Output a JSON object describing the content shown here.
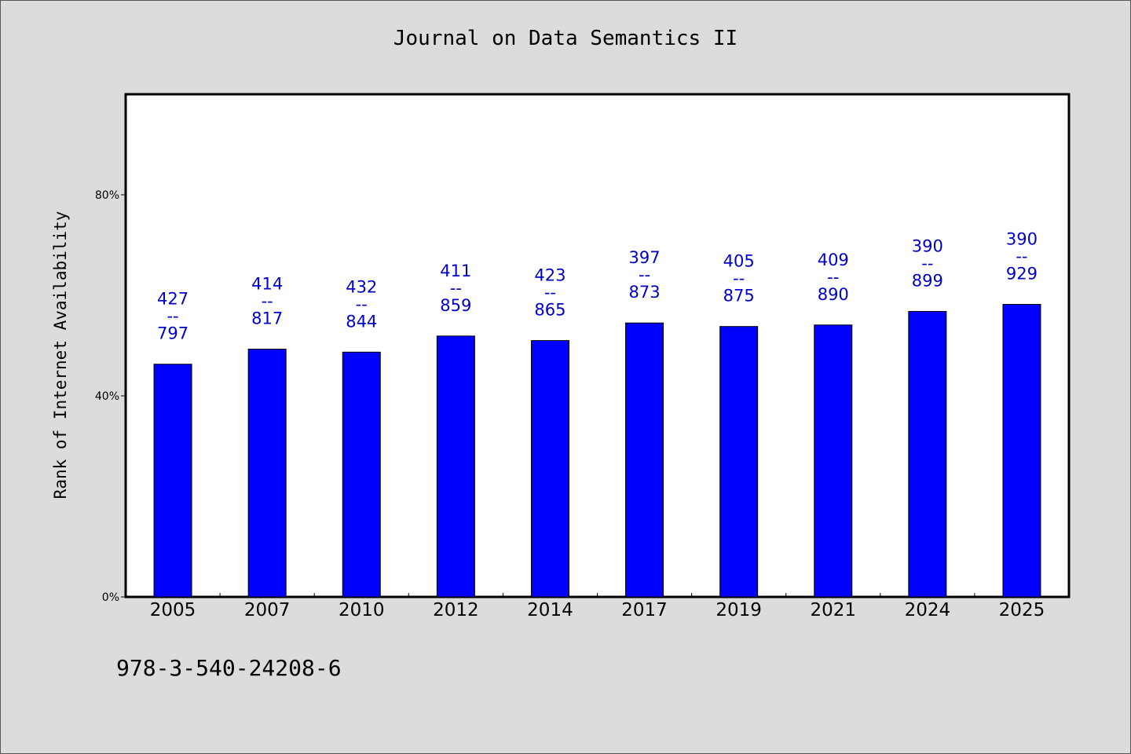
{
  "title": "Journal on Data Semantics II",
  "footnote": "978-3-540-24208-6",
  "chart_data": {
    "type": "bar",
    "title": "Journal on Data Semantics II",
    "xlabel": "",
    "ylabel": "Rank of Internet Availability",
    "categories": [
      "2005",
      "2007",
      "2010",
      "2012",
      "2014",
      "2017",
      "2019",
      "2021",
      "2024",
      "2025"
    ],
    "values": [
      46.3,
      49.3,
      48.7,
      51.9,
      51.0,
      54.5,
      53.8,
      54.1,
      56.8,
      58.2
    ],
    "data_labels": [
      {
        "top": "427",
        "mid": "--",
        "bottom": "797"
      },
      {
        "top": "414",
        "mid": "--",
        "bottom": "817"
      },
      {
        "top": "432",
        "mid": "--",
        "bottom": "844"
      },
      {
        "top": "411",
        "mid": "--",
        "bottom": "859"
      },
      {
        "top": "423",
        "mid": "--",
        "bottom": "865"
      },
      {
        "top": "397",
        "mid": "--",
        "bottom": "873"
      },
      {
        "top": "405",
        "mid": "--",
        "bottom": "875"
      },
      {
        "top": "409",
        "mid": "--",
        "bottom": "890"
      },
      {
        "top": "390",
        "mid": "--",
        "bottom": "899"
      },
      {
        "top": "390",
        "mid": "--",
        "bottom": "929"
      }
    ],
    "yticks": [
      0,
      40,
      80
    ],
    "ytick_labels": [
      "0%",
      "40%",
      "80%"
    ],
    "ylim": [
      0,
      100
    ],
    "grid": false,
    "bar_color": "#0000ff",
    "label_color": "#0000cc"
  }
}
